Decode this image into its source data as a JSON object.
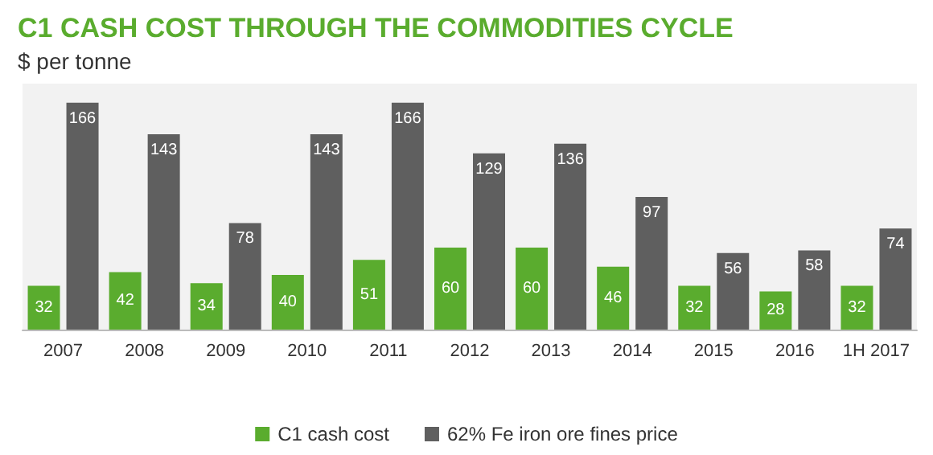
{
  "chart_data": {
    "type": "bar",
    "title": "C1 CASH COST THROUGH THE COMMODITIES CYCLE",
    "subtitle": "$ per tonne",
    "categories": [
      "2007",
      "2008",
      "2009",
      "2010",
      "2011",
      "2012",
      "2013",
      "2014",
      "2015",
      "2016",
      "1H 2017"
    ],
    "series": [
      {
        "name": "C1 cash cost",
        "color": "#5aac2e",
        "values": [
          32,
          42,
          34,
          40,
          51,
          60,
          60,
          46,
          32,
          28,
          32
        ]
      },
      {
        "name": "62% Fe iron ore fines price",
        "color": "#5f5f5f",
        "values": [
          166,
          143,
          78,
          143,
          166,
          129,
          136,
          97,
          56,
          58,
          74
        ]
      }
    ],
    "data_labels": true,
    "legend": "bottom"
  }
}
